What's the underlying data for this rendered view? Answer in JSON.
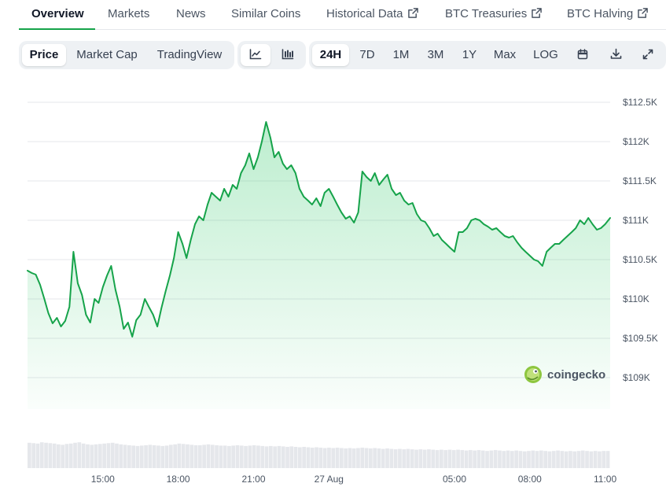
{
  "nav": {
    "tabs": [
      {
        "label": "Overview",
        "active": true,
        "external": false
      },
      {
        "label": "Markets",
        "active": false,
        "external": false
      },
      {
        "label": "News",
        "active": false,
        "external": false
      },
      {
        "label": "Similar Coins",
        "active": false,
        "external": false
      },
      {
        "label": "Historical Data",
        "active": false,
        "external": true
      },
      {
        "label": "BTC Treasuries",
        "active": false,
        "external": true
      },
      {
        "label": "BTC Halving",
        "active": false,
        "external": true
      }
    ]
  },
  "toolbar": {
    "view_modes": [
      {
        "label": "Price",
        "active": true
      },
      {
        "label": "Market Cap",
        "active": false
      },
      {
        "label": "TradingView",
        "active": false
      }
    ],
    "chart_styles": [
      {
        "icon": "line-chart-icon",
        "active": true
      },
      {
        "icon": "candlestick-chart-icon",
        "active": false
      }
    ],
    "ranges": [
      {
        "label": "24H",
        "active": true
      },
      {
        "label": "7D",
        "active": false
      },
      {
        "label": "1M",
        "active": false
      },
      {
        "label": "3M",
        "active": false
      },
      {
        "label": "1Y",
        "active": false
      },
      {
        "label": "Max",
        "active": false
      },
      {
        "label": "LOG",
        "active": false
      }
    ],
    "actions": [
      {
        "icon": "calendar-icon"
      },
      {
        "icon": "download-icon"
      },
      {
        "icon": "expand-icon"
      }
    ]
  },
  "watermark": {
    "text": "coingecko"
  },
  "colors": {
    "line": "#16a34a",
    "accent": "#16a34a",
    "volume": "#e5e7eb",
    "grid": "#e5e7eb"
  },
  "chart_data": {
    "type": "area",
    "title": "",
    "xlabel": "",
    "ylabel": "",
    "ylim": [
      108600,
      112600
    ],
    "yticks": [
      109000,
      109500,
      110000,
      110500,
      111000,
      111500,
      112000,
      112500
    ],
    "ytick_labels": [
      "$109K",
      "$109.5K",
      "$110K",
      "$110.5K",
      "$111K",
      "$111.5K",
      "$112K",
      "$112.5K"
    ],
    "x_range_hours": [
      12.0,
      35.2
    ],
    "xticks": [
      15,
      18,
      21,
      24,
      29,
      32,
      35
    ],
    "xtick_labels": [
      "15:00",
      "18:00",
      "21:00",
      "27 Aug",
      "05:00",
      "08:00",
      "11:00"
    ],
    "grid": true,
    "series": [
      {
        "x": [
          12.0,
          12.17,
          12.33,
          12.5,
          12.67,
          12.83,
          13.0,
          13.17,
          13.33,
          13.5,
          13.67,
          13.83,
          14.0,
          14.17,
          14.33,
          14.5,
          14.67,
          14.83,
          15.0,
          15.17,
          15.33,
          15.5,
          15.67,
          15.83,
          16.0,
          16.17,
          16.33,
          16.5,
          16.67,
          16.83,
          17.0,
          17.17,
          17.33,
          17.5,
          17.67,
          17.83,
          18.0,
          18.17,
          18.33,
          18.5,
          18.67,
          18.83,
          19.0,
          19.17,
          19.33,
          19.5,
          19.67,
          19.83,
          20.0,
          20.17,
          20.33,
          20.5,
          20.67,
          20.83,
          21.0,
          21.17,
          21.33,
          21.5,
          21.67,
          21.83,
          22.0,
          22.17,
          22.33,
          22.5,
          22.67,
          22.83,
          23.0,
          23.17,
          23.33,
          23.5,
          23.67,
          23.83,
          24.0,
          24.17,
          24.33,
          24.5,
          24.67,
          24.83,
          25.0,
          25.17,
          25.33,
          25.5,
          25.67,
          25.83,
          26.0,
          26.17,
          26.33,
          26.5,
          26.67,
          26.83,
          27.0,
          27.17,
          27.33,
          27.5,
          27.67,
          27.83,
          28.0,
          28.17,
          28.33,
          28.5,
          28.67,
          28.83,
          29.0,
          29.17,
          29.33,
          29.5,
          29.67,
          29.83,
          30.0,
          30.17,
          30.33,
          30.5,
          30.67,
          30.83,
          31.0,
          31.17,
          31.33,
          31.5,
          31.67,
          31.83,
          32.0,
          32.17,
          32.33,
          32.5,
          32.67,
          32.83,
          33.0,
          33.17,
          33.33,
          33.5,
          33.67,
          33.83,
          34.0,
          34.17,
          34.33,
          34.5,
          34.67,
          34.83,
          35.0,
          35.2
        ],
        "values": [
          110360,
          110330,
          110310,
          110180,
          110000,
          109820,
          109690,
          109760,
          109650,
          109720,
          109900,
          110600,
          110200,
          110050,
          109800,
          109700,
          110000,
          109950,
          110150,
          110300,
          110420,
          110120,
          109900,
          109620,
          109700,
          109520,
          109730,
          109800,
          110000,
          109900,
          109800,
          109650,
          109880,
          110100,
          110300,
          110520,
          110850,
          110700,
          110520,
          110750,
          110950,
          111050,
          111000,
          111200,
          111350,
          111300,
          111250,
          111400,
          111300,
          111450,
          111400,
          111600,
          111700,
          111850,
          111650,
          111800,
          112000,
          112250,
          112050,
          111800,
          111870,
          111720,
          111650,
          111700,
          111600,
          111400,
          111300,
          111250,
          111200,
          111280,
          111180,
          111350,
          111400,
          111300,
          111200,
          111100,
          111020,
          111050,
          110970,
          111100,
          111620,
          111550,
          111500,
          111600,
          111450,
          111520,
          111580,
          111400,
          111320,
          111350,
          111250,
          111200,
          111220,
          111080,
          111000,
          110980,
          110900,
          110800,
          110830,
          110750,
          110700,
          110650,
          110600,
          110850,
          110850,
          110900,
          111000,
          111020,
          111000,
          110950,
          110920,
          110880,
          110900,
          110850,
          110800,
          110780,
          110800,
          110720,
          110650,
          110600,
          110550,
          110500,
          110480,
          110420,
          110600,
          110650,
          110700,
          110700,
          110750,
          110800,
          110850,
          110900,
          111000,
          110950,
          111030,
          110950,
          110880,
          110900,
          110950,
          111030
        ]
      }
    ],
    "volume": [
      0.62,
      0.61,
      0.6,
      0.63,
      0.62,
      0.61,
      0.6,
      0.58,
      0.57,
      0.59,
      0.6,
      0.62,
      0.63,
      0.6,
      0.58,
      0.57,
      0.58,
      0.59,
      0.6,
      0.61,
      0.62,
      0.6,
      0.58,
      0.57,
      0.56,
      0.55,
      0.54,
      0.55,
      0.56,
      0.57,
      0.56,
      0.55,
      0.54,
      0.55,
      0.57,
      0.58,
      0.6,
      0.59,
      0.58,
      0.57,
      0.56,
      0.56,
      0.57,
      0.58,
      0.57,
      0.56,
      0.55,
      0.55,
      0.54,
      0.55,
      0.56,
      0.55,
      0.54,
      0.55,
      0.56,
      0.55,
      0.54,
      0.53,
      0.54,
      0.53,
      0.54,
      0.53,
      0.52,
      0.53,
      0.52,
      0.51,
      0.52,
      0.51,
      0.5,
      0.51,
      0.5,
      0.49,
      0.5,
      0.49,
      0.5,
      0.49,
      0.48,
      0.49,
      0.48,
      0.49,
      0.5,
      0.49,
      0.48,
      0.49,
      0.48,
      0.47,
      0.48,
      0.47,
      0.46,
      0.47,
      0.46,
      0.47,
      0.46,
      0.45,
      0.46,
      0.45,
      0.46,
      0.45,
      0.44,
      0.45,
      0.44,
      0.45,
      0.44,
      0.45,
      0.44,
      0.43,
      0.44,
      0.43,
      0.44,
      0.43,
      0.42,
      0.43,
      0.44,
      0.43,
      0.42,
      0.43,
      0.42,
      0.43,
      0.42,
      0.41,
      0.42,
      0.43,
      0.42,
      0.43,
      0.42,
      0.41,
      0.42,
      0.43,
      0.42,
      0.41,
      0.42,
      0.41,
      0.42,
      0.43,
      0.42,
      0.41,
      0.42,
      0.41,
      0.42,
      0.42
    ]
  }
}
